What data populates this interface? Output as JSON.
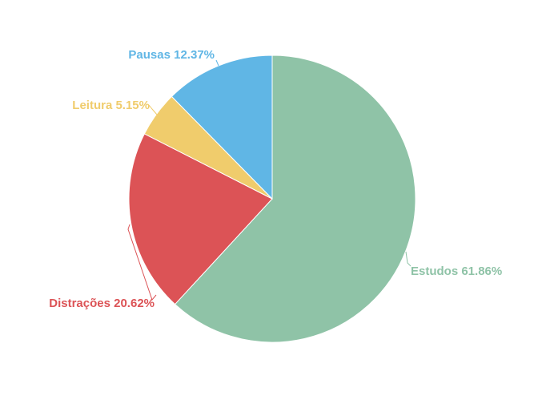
{
  "chart_data": {
    "type": "pie",
    "title": "",
    "start_angle_deg": 0,
    "direction": "clockwise",
    "slices": [
      {
        "name": "Estudos",
        "percent_label": "61.86%",
        "value": 61.86,
        "color": "#8fc3a7"
      },
      {
        "name": "Distrações",
        "percent_label": "20.62%",
        "value": 20.62,
        "color": "#dc5356"
      },
      {
        "name": "Leitura",
        "percent_label": "5.15%",
        "value": 5.15,
        "color": "#f0cc6c"
      },
      {
        "name": "Pausas",
        "percent_label": "12.37%",
        "value": 12.37,
        "color": "#60b6e5"
      }
    ]
  }
}
